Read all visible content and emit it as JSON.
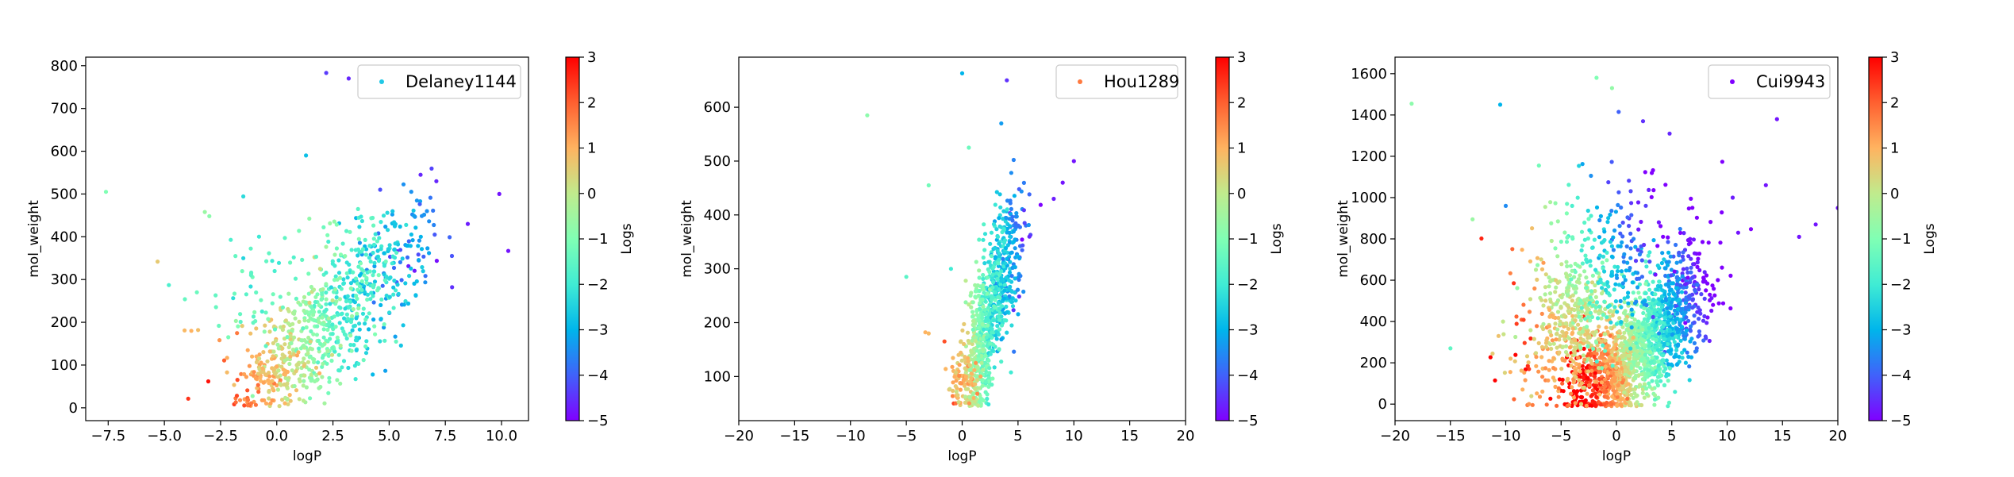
{
  "colormap": [
    "#8000ff",
    "#4062fa",
    "#00b5eb",
    "#40ecd4",
    "#80ffb4",
    "#c0eb8d",
    "#ffb360",
    "#ff6030",
    "#ff0000"
  ],
  "colorbar": {
    "label": "Logs",
    "range": [
      -5,
      3
    ],
    "ticks": [
      "3",
      "2",
      "1",
      "0",
      "−1",
      "−2",
      "−3",
      "−4",
      "−5"
    ]
  },
  "chart_data": [
    {
      "type": "scatter",
      "title": "",
      "xlabel": "logP",
      "ylabel": "mol_weight",
      "color_label": "Logs",
      "legend": {
        "label": "Delaney1144",
        "position": "top-right",
        "marker_color": "#21c8e6"
      },
      "xlim": [
        -8.5,
        11.2
      ],
      "ylim": [
        -30,
        820
      ],
      "xticks": [
        "−7.5",
        "−5.0",
        "−2.5",
        "0.0",
        "2.5",
        "5.0",
        "7.5",
        "10.0"
      ],
      "xtick_values": [
        -7.5,
        -5,
        -2.5,
        0,
        2.5,
        5,
        7.5,
        10
      ],
      "yticks": [
        "0",
        "100",
        "200",
        "300",
        "400",
        "500",
        "600",
        "700",
        "800"
      ],
      "ytick_values": [
        0,
        100,
        200,
        300,
        400,
        500,
        600,
        700,
        800
      ],
      "points": [
        {
          "x": -7.6,
          "y": 505,
          "c": -1.0
        },
        {
          "x": -5.3,
          "y": 342,
          "c": 0.6
        },
        {
          "x": -4.8,
          "y": 287,
          "c": -1.8
        },
        {
          "x": -4.1,
          "y": 181,
          "c": 0.9
        },
        {
          "x": -3.8,
          "y": 180,
          "c": 1.0
        },
        {
          "x": -3.5,
          "y": 182,
          "c": 0.8
        },
        {
          "x": -3.2,
          "y": 458,
          "c": -0.6
        },
        {
          "x": -3.0,
          "y": 448,
          "c": -0.8
        },
        {
          "x": 2.2,
          "y": 783,
          "c": -4.4
        },
        {
          "x": 3.2,
          "y": 770,
          "c": -4.6
        },
        {
          "x": 1.3,
          "y": 590,
          "c": -2.8
        },
        {
          "x": 10.3,
          "y": 367,
          "c": -4.8
        },
        {
          "x": 9.9,
          "y": 500,
          "c": -4.8
        },
        {
          "x": 8.5,
          "y": 430,
          "c": -4.7
        },
        {
          "x": 7.8,
          "y": 282,
          "c": -4.5
        },
        {
          "x": 7.1,
          "y": 530,
          "c": -4.6
        },
        {
          "x": 6.4,
          "y": 545,
          "c": -4.6
        },
        {
          "x": 4.6,
          "y": 510,
          "c": -4.2
        }
      ],
      "clusters": [
        {
          "x": 1.8,
          "y": 170,
          "sx": 1.7,
          "sy": 75,
          "n": 520,
          "slope": 38,
          "cBase": -1.0,
          "cSlope": -0.7
        },
        {
          "x": 4.6,
          "y": 330,
          "sx": 1.4,
          "sy": 75,
          "n": 230,
          "slope": 30,
          "cBase": -2.0,
          "cSlope": -0.6
        },
        {
          "x": -0.3,
          "y": 90,
          "sx": 0.8,
          "sy": 30,
          "n": 70,
          "slope": 0,
          "cBase": 0.8,
          "cSlope": 0.0
        },
        {
          "x": -1.0,
          "y": 250,
          "sx": 1.2,
          "sy": 90,
          "n": 60,
          "slope": 0,
          "cBase": -1.3,
          "cSlope": 0.0
        }
      ]
    },
    {
      "type": "scatter",
      "title": "",
      "xlabel": "logP",
      "ylabel": "mol_weight",
      "color_label": "Logs",
      "legend": {
        "label": "Hou1289",
        "position": "top-right",
        "marker_color": "#ff7a40"
      },
      "xlim": [
        -20,
        20
      ],
      "ylim": [
        18,
        693
      ],
      "xticks": [
        "−20",
        "−15",
        "−10",
        "−5",
        "0",
        "5",
        "10",
        "15",
        "20"
      ],
      "xtick_values": [
        -20,
        -15,
        -10,
        -5,
        0,
        5,
        10,
        15,
        20
      ],
      "yticks": [
        "100",
        "200",
        "300",
        "400",
        "500",
        "600"
      ],
      "ytick_values": [
        100,
        200,
        300,
        400,
        500,
        600
      ],
      "points": [
        {
          "x": -8.5,
          "y": 585,
          "c": -0.8
        },
        {
          "x": -5.0,
          "y": 285,
          "c": -1.6
        },
        {
          "x": -3.3,
          "y": 182,
          "c": 1.0
        },
        {
          "x": -3.0,
          "y": 180,
          "c": 0.9
        },
        {
          "x": 0.0,
          "y": 663,
          "c": -3.0
        },
        {
          "x": 4.0,
          "y": 650,
          "c": -4.5
        },
        {
          "x": 3.5,
          "y": 570,
          "c": -3.3
        },
        {
          "x": 0.6,
          "y": 525,
          "c": -1.3
        },
        {
          "x": 10.0,
          "y": 500,
          "c": -4.8
        },
        {
          "x": 9.0,
          "y": 460,
          "c": -4.8
        },
        {
          "x": -3.0,
          "y": 455,
          "c": -1.2
        },
        {
          "x": 8.2,
          "y": 430,
          "c": -4.7
        },
        {
          "x": -1.0,
          "y": 300,
          "c": -2.0
        }
      ],
      "clusters": [
        {
          "x": 1.8,
          "y": 170,
          "sx": 1.0,
          "sy": 70,
          "n": 580,
          "slope": 45,
          "cBase": -1.2,
          "cSlope": -0.9
        },
        {
          "x": 3.8,
          "y": 300,
          "sx": 0.9,
          "sy": 70,
          "n": 260,
          "slope": 35,
          "cBase": -2.5,
          "cSlope": -0.7
        },
        {
          "x": 0.2,
          "y": 100,
          "sx": 0.7,
          "sy": 25,
          "n": 60,
          "slope": 0,
          "cBase": 0.9,
          "cSlope": 0.0
        }
      ]
    },
    {
      "type": "scatter",
      "title": "",
      "xlabel": "logP",
      "ylabel": "mol_weight",
      "color_label": "Logs",
      "legend": {
        "label": "Cui9943",
        "position": "top-right",
        "marker_color": "#8000ff"
      },
      "xlim": [
        -20,
        20
      ],
      "ylim": [
        -80,
        1680
      ],
      "xticks": [
        "−20",
        "−15",
        "−10",
        "−5",
        "0",
        "5",
        "10",
        "15",
        "20"
      ],
      "xtick_values": [
        -20,
        -15,
        -10,
        -5,
        0,
        5,
        10,
        15,
        20
      ],
      "yticks": [
        "0",
        "200",
        "400",
        "600",
        "800",
        "1000",
        "1200",
        "1400",
        "1600"
      ],
      "ytick_values": [
        0,
        200,
        400,
        600,
        800,
        1000,
        1200,
        1400,
        1600
      ],
      "points": [
        {
          "x": -18.5,
          "y": 1455,
          "c": -0.8
        },
        {
          "x": -10.5,
          "y": 1450,
          "c": -3.0
        },
        {
          "x": -1.8,
          "y": 1580,
          "c": -1.0
        },
        {
          "x": -0.4,
          "y": 1530,
          "c": -0.7
        },
        {
          "x": 0.2,
          "y": 1415,
          "c": -4.0
        },
        {
          "x": 2.4,
          "y": 1370,
          "c": -4.5
        },
        {
          "x": 4.8,
          "y": 1310,
          "c": -4.6
        },
        {
          "x": 14.5,
          "y": 1380,
          "c": -4.8
        },
        {
          "x": 20.0,
          "y": 950,
          "c": -4.8
        },
        {
          "x": 18.0,
          "y": 870,
          "c": -4.8
        },
        {
          "x": 16.5,
          "y": 810,
          "c": -4.8
        },
        {
          "x": -15.0,
          "y": 270,
          "c": -1.5
        },
        {
          "x": -13.0,
          "y": 895,
          "c": -0.6
        },
        {
          "x": -10.0,
          "y": 960,
          "c": -3.5
        },
        {
          "x": -7.0,
          "y": 1155,
          "c": -1.2
        },
        {
          "x": -4.0,
          "y": 960,
          "c": -1.8
        },
        {
          "x": 11.0,
          "y": 830,
          "c": -4.8
        },
        {
          "x": 13.5,
          "y": 1060,
          "c": -4.8
        },
        {
          "x": 10.5,
          "y": 1000,
          "c": -4.7
        }
      ],
      "clusters": [
        {
          "x": 0.5,
          "y": 200,
          "sx": 2.2,
          "sy": 110,
          "n": 900,
          "slope": 30,
          "cBase": 0.4,
          "cSlope": -0.7
        },
        {
          "x": 4.5,
          "y": 420,
          "sx": 2.0,
          "sy": 150,
          "n": 650,
          "slope": 40,
          "cBase": -2.5,
          "cSlope": -0.6
        },
        {
          "x": -3.5,
          "y": 430,
          "sx": 1.8,
          "sy": 110,
          "n": 250,
          "slope": 0,
          "cBase": 0.2,
          "cSlope": 0.0
        },
        {
          "x": -2.0,
          "y": 620,
          "sx": 3.5,
          "sy": 220,
          "n": 350,
          "slope": 25,
          "cBase": -1.8,
          "cSlope": -0.5
        },
        {
          "x": -5.0,
          "y": 170,
          "sx": 2.5,
          "sy": 100,
          "n": 120,
          "slope": 0,
          "cBase": 1.0,
          "cSlope": 0.0
        }
      ]
    }
  ]
}
